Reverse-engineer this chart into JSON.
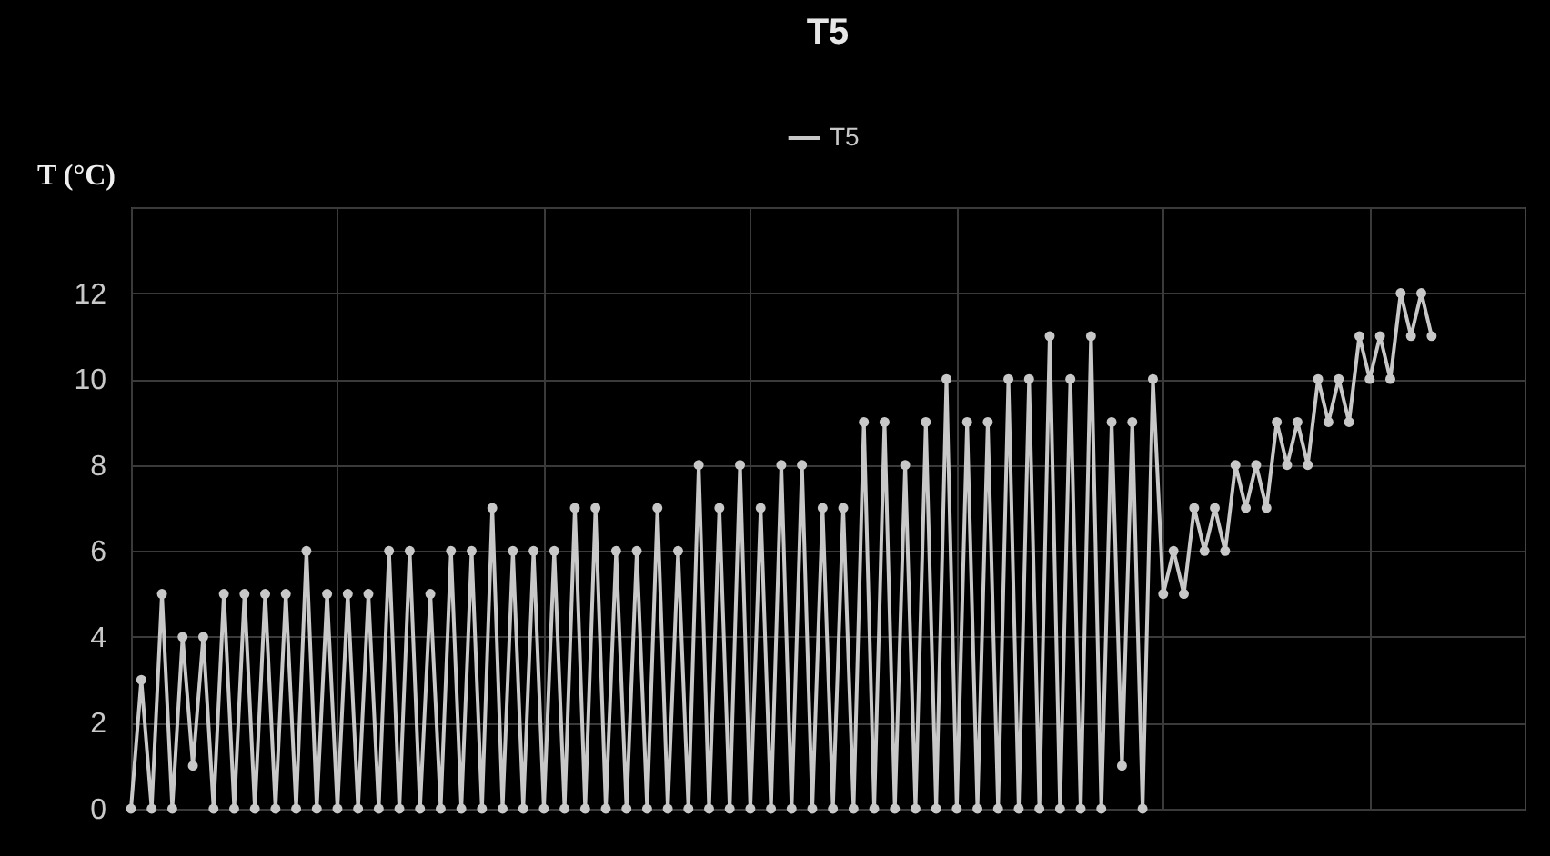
{
  "chart_data": {
    "type": "line",
    "title": "T5",
    "ylabel": "T (°C)",
    "categories": [
      null,
      null,
      null,
      null,
      null,
      null,
      null,
      null,
      null,
      null,
      null,
      null,
      null,
      null,
      null,
      null,
      null,
      null,
      null,
      null,
      null,
      null,
      null,
      null,
      null,
      null,
      null,
      null,
      null,
      null,
      null,
      null,
      null,
      null,
      null,
      null,
      null,
      null,
      null,
      null,
      null,
      null,
      null,
      null,
      null,
      null,
      null,
      null,
      null,
      null,
      null,
      null,
      null,
      null,
      null,
      null,
      null,
      null,
      null,
      null,
      null,
      null,
      null,
      null,
      null,
      null,
      null,
      null,
      null,
      null,
      null,
      null,
      null,
      null,
      null,
      null,
      null,
      null,
      null,
      null,
      null,
      null,
      null,
      null,
      null,
      null,
      null,
      null,
      null,
      null,
      null,
      null,
      null,
      null,
      null,
      null,
      null,
      null,
      null,
      null,
      null,
      null,
      null,
      null,
      null,
      null,
      null,
      null,
      null,
      null,
      null,
      null,
      null,
      null,
      null,
      null,
      null,
      null,
      null,
      null,
      null,
      null,
      null,
      null,
      null,
      null,
      null,
      null,
      null,
      null,
      null,
      null,
      null,
      null,
      null,
      null
    ],
    "series": [
      {
        "name": "T5",
        "color": "#c8c8c8",
        "values": [
          0,
          3,
          0,
          5,
          0,
          4,
          1,
          4,
          0,
          5,
          0,
          5,
          0,
          5,
          0,
          5,
          0,
          6,
          0,
          5,
          0,
          5,
          0,
          5,
          0,
          6,
          0,
          6,
          0,
          5,
          0,
          6,
          0,
          6,
          0,
          7,
          0,
          6,
          0,
          6,
          0,
          6,
          0,
          7,
          0,
          7,
          0,
          6,
          0,
          6,
          0,
          7,
          0,
          6,
          0,
          8,
          0,
          7,
          0,
          8,
          0,
          7,
          0,
          8,
          0,
          8,
          0,
          7,
          0,
          7,
          0,
          9,
          0,
          9,
          0,
          8,
          0,
          9,
          0,
          10,
          0,
          9,
          0,
          9,
          0,
          10,
          0,
          10,
          0,
          11,
          0,
          10,
          0,
          11,
          0,
          9,
          1,
          9,
          0,
          10,
          5,
          6,
          5,
          7,
          6,
          7,
          6,
          8,
          7,
          8,
          7,
          9,
          8,
          9,
          8,
          10,
          9,
          10,
          9,
          11,
          10,
          11,
          10,
          12,
          11,
          12,
          11,
          null,
          null,
          null,
          null,
          null,
          null,
          null,
          null,
          null
        ]
      }
    ],
    "ylim": [
      0,
      14
    ],
    "yticks": [
      0,
      2,
      4,
      6,
      8,
      10,
      12,
      {
        "value": 14,
        "label": null
      }
    ],
    "grid": true,
    "legend": "top",
    "marker": "circle",
    "line_style": "solid",
    "tick_labels": "y"
  }
}
